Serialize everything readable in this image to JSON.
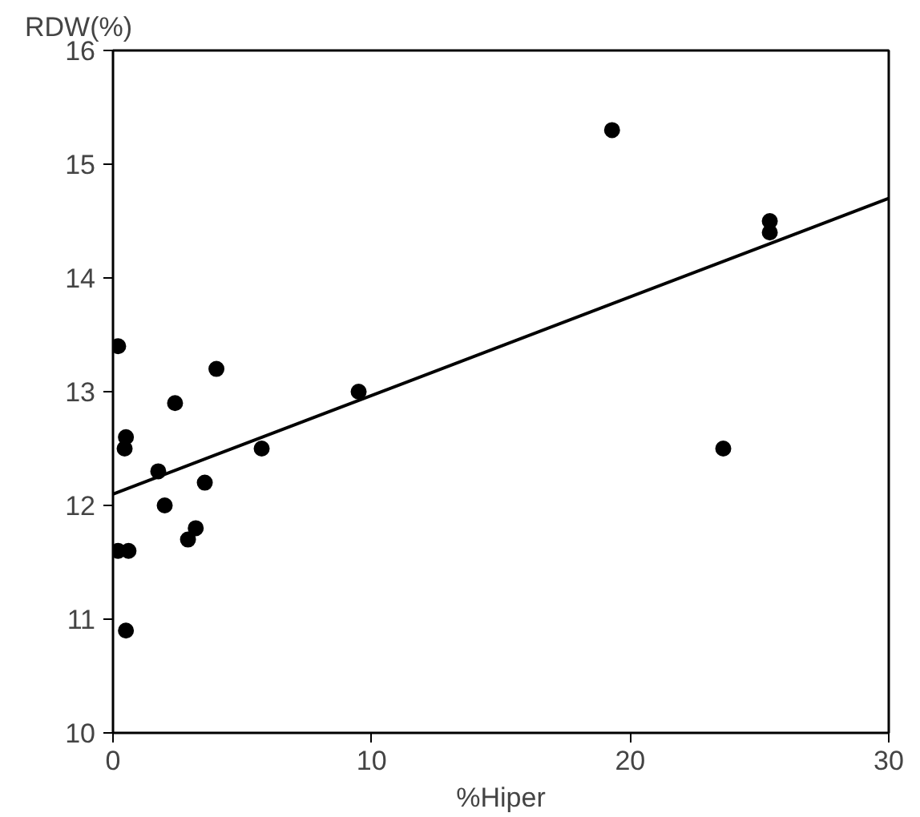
{
  "chart_data": {
    "type": "scatter",
    "xlabel": "%Hiper",
    "ylabel": "RDW(%)",
    "series": [
      {
        "color": "#000000",
        "marker": "circle",
        "x": [
          0.2,
          4.0,
          2.4,
          0.5,
          0.45,
          1.75,
          5.75,
          3.55,
          2.0,
          3.2,
          2.9,
          0.2,
          0.6,
          0.5,
          19.3,
          25.4,
          25.4,
          23.6,
          9.5
        ],
        "values": [
          13.4,
          13.2,
          12.9,
          12.6,
          12.5,
          12.3,
          12.5,
          12.2,
          12.0,
          11.8,
          11.7,
          11.6,
          11.6,
          10.9,
          15.3,
          14.5,
          14.4,
          12.5,
          13.0
        ]
      },
      {
        "type": "line",
        "color": "#000000",
        "line_style": "solid",
        "x": [
          0,
          30
        ],
        "values": [
          12.1,
          14.7
        ]
      }
    ],
    "xlim": [
      0,
      30
    ],
    "ylim": [
      10,
      16
    ],
    "xticks": [
      0,
      10,
      20,
      30
    ],
    "yticks": [
      10,
      11,
      12,
      13,
      14,
      15,
      16
    ],
    "grid": false
  }
}
